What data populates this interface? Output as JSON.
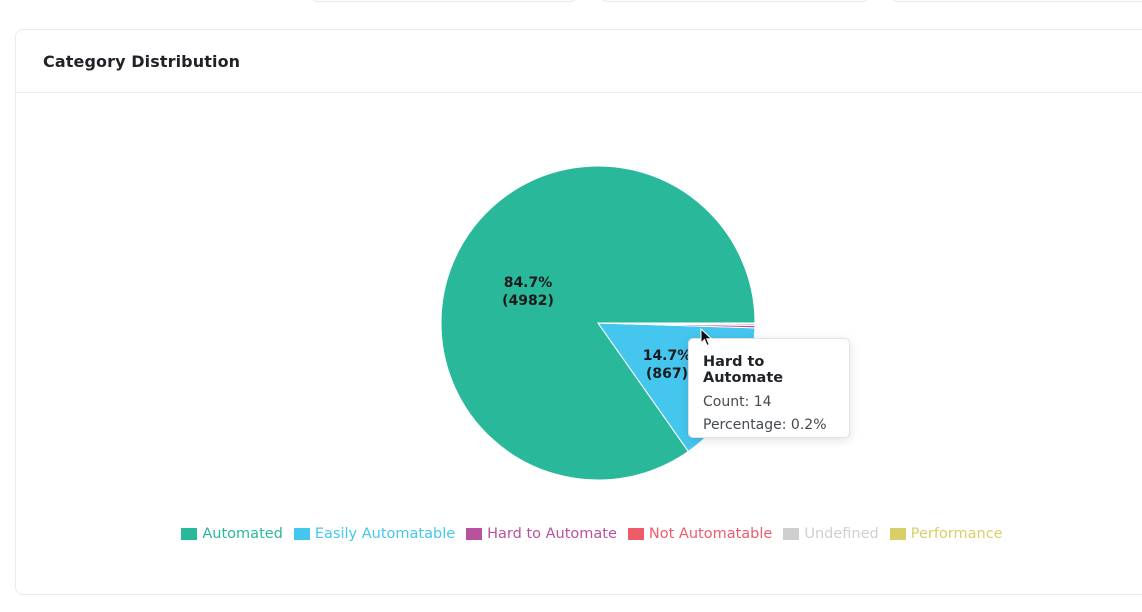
{
  "card": {
    "title": "Category Distribution"
  },
  "chart_data": {
    "type": "pie",
    "title": "Category Distribution",
    "legend_position": "bottom",
    "slices": [
      {
        "name": "Automated",
        "value": 4982,
        "percent_label": "84.7%",
        "count_label": "(4982)",
        "color": "#29b899",
        "show_label": true
      },
      {
        "name": "Easily Automatable",
        "value": 867,
        "percent_label": "14.7%",
        "count_label": "(867)",
        "color": "#45c6ef",
        "show_label": true
      },
      {
        "name": "Hard to Automate",
        "value": 14,
        "percent_label": "",
        "count_label": "",
        "color": "#b8529f",
        "show_label": false
      },
      {
        "name": "Not Automatable",
        "value": 9,
        "percent_label": "",
        "count_label": "",
        "color": "#ee5c6b",
        "show_label": false
      },
      {
        "name": "Undefined",
        "value": 4,
        "percent_label": "",
        "count_label": "",
        "color": "#cfcfcf",
        "show_label": false
      },
      {
        "name": "Performance",
        "value": 2,
        "percent_label": "",
        "count_label": "",
        "color": "#d6cf6a",
        "show_label": false
      }
    ]
  },
  "tooltip": {
    "title": "Hard to Automate",
    "count": "Count: 14",
    "percentage": "Percentage: 0.2%"
  }
}
